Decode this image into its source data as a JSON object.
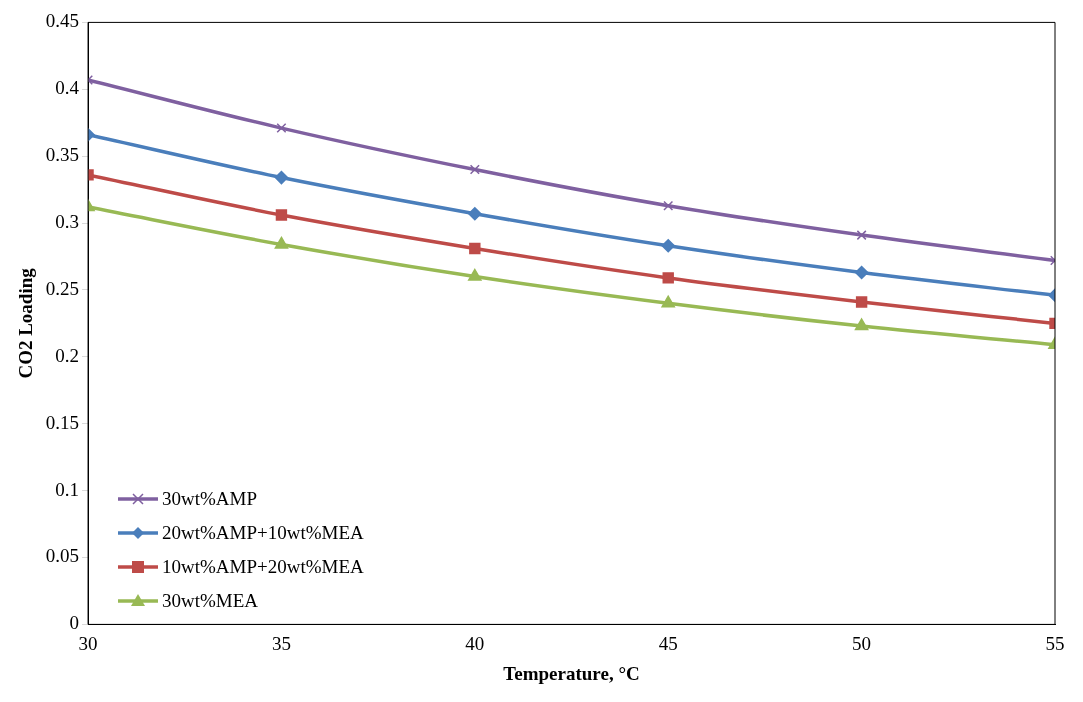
{
  "chart_data": {
    "type": "line",
    "xlabel": "Temperature, °C",
    "ylabel": "CO2 Loading",
    "x": [
      30,
      35,
      40,
      45,
      50,
      55
    ],
    "xlim": [
      30,
      55
    ],
    "xticks": [
      30,
      35,
      40,
      45,
      50,
      55
    ],
    "ylim": [
      0,
      0.45
    ],
    "yticks": [
      0,
      0.05,
      0.1,
      0.15,
      0.2,
      0.25,
      0.3,
      0.35,
      0.4,
      0.45
    ],
    "grid": false,
    "legend": "bottom left",
    "line_style": "solid",
    "series": [
      {
        "name": "30wt%AMP",
        "color": "#7f60a0",
        "marker": "cross",
        "values": [
          0.407,
          0.371,
          0.34,
          0.313,
          0.291,
          0.272
        ]
      },
      {
        "name": "20wt%AMP+10wt%MEA",
        "color": "#4a7ebb",
        "marker": "diamond",
        "values": [
          0.366,
          0.334,
          0.307,
          0.283,
          0.263,
          0.246
        ]
      },
      {
        "name": "10wt%AMP+20wt%MEA",
        "color": "#be4b48",
        "marker": "square",
        "values": [
          0.336,
          0.306,
          0.281,
          0.259,
          0.241,
          0.225
        ]
      },
      {
        "name": "30wt%MEA",
        "color": "#98b954",
        "marker": "triangle",
        "values": [
          0.312,
          0.284,
          0.26,
          0.24,
          0.223,
          0.209
        ]
      }
    ]
  }
}
